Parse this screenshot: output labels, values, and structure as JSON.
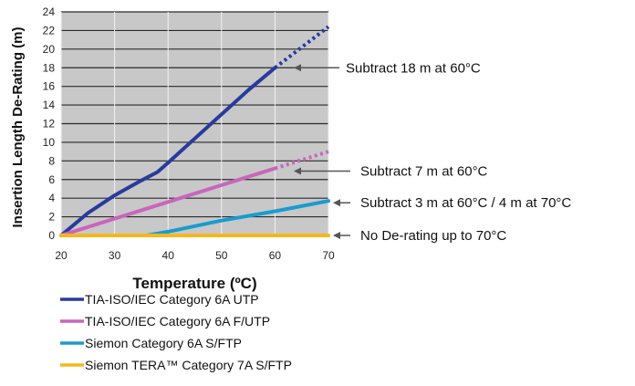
{
  "chart_data": {
    "type": "line",
    "xlabel": "Temperature (ºC)",
    "ylabel": "Insertion Length De-Rating (m)",
    "xlim": [
      20,
      70
    ],
    "ylim": [
      0,
      24
    ],
    "x_ticks": [
      20,
      30,
      40,
      50,
      60,
      70
    ],
    "y_ticks": [
      0,
      2,
      4,
      6,
      8,
      10,
      12,
      14,
      16,
      18,
      20,
      22,
      24
    ],
    "grid": "horizontal",
    "plot_background": "#c8c8c8",
    "legend_position": "bottom-left",
    "series": [
      {
        "name": "TIA-ISO/IEC Category 6A UTP",
        "color": "#2a3a9c",
        "x": [
          20,
          25,
          30,
          35,
          38,
          40,
          45,
          50,
          55,
          60
        ],
        "y": [
          0,
          2.4,
          4.3,
          5.9,
          6.8,
          7.8,
          10.4,
          13.0,
          15.6,
          18.0
        ],
        "extrapolated": {
          "x": [
            60,
            65,
            70
          ],
          "y": [
            18.0,
            20.2,
            22.4
          ]
        }
      },
      {
        "name": "TIA-ISO/IEC Category 6A F/UTP",
        "color": "#c965bb",
        "x": [
          20,
          30,
          40,
          50,
          60
        ],
        "y": [
          0,
          1.8,
          3.6,
          5.4,
          7.2
        ],
        "extrapolated": {
          "x": [
            60,
            65,
            70
          ],
          "y": [
            7.2,
            8.1,
            9.0
          ]
        }
      },
      {
        "name": "Siemon Category 6A S/FTP",
        "color": "#1a9bd0",
        "x": [
          20,
          36,
          40,
          50,
          60,
          70
        ],
        "y": [
          0,
          0,
          0.4,
          1.6,
          2.6,
          3.7
        ]
      },
      {
        "name": "Siemon TERA™ Category 7A S/FTP",
        "color": "#f5b71b",
        "x": [
          20,
          70
        ],
        "y": [
          0,
          0
        ]
      }
    ],
    "annotations": [
      {
        "text": "Subtract 18 m at 60°C",
        "target_x": 60,
        "target_y": 18
      },
      {
        "text": "Subtract 7 m at 60°C",
        "target_x": 60,
        "target_y": 7.2
      },
      {
        "text": "Subtract 3 m at 60°C / 4 m at 70°C",
        "target_x": 70,
        "target_y": 3.7
      },
      {
        "text": "No De-rating up to 70°C",
        "target_x": 70,
        "target_y": 0
      }
    ]
  }
}
